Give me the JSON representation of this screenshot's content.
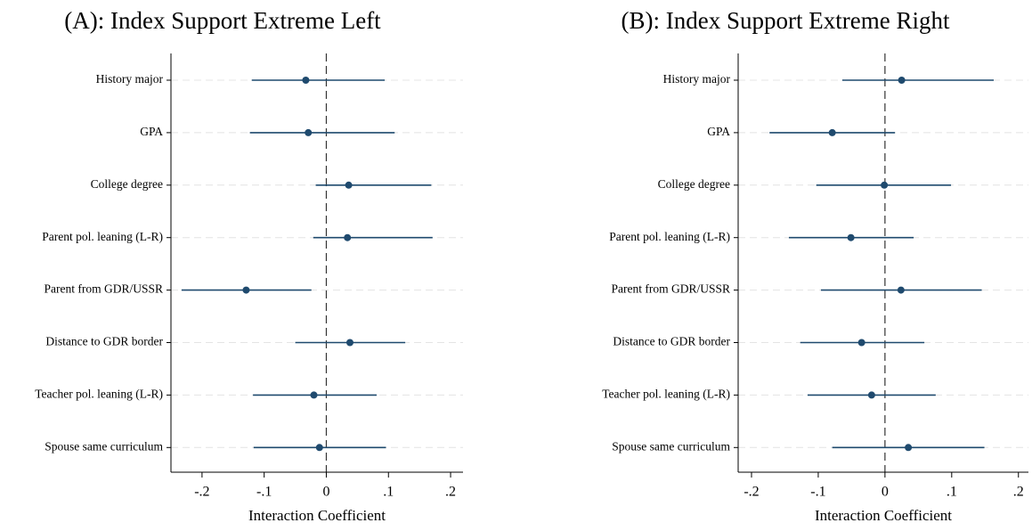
{
  "chart_data": [
    {
      "type": "errorbar",
      "title": "(A): Index Support Extreme Left",
      "x_label": "Interaction Coefficient",
      "categories": [
        "History major",
        "GPA",
        "College degree",
        "Parent pol. leaning (L-R)",
        "Parent from GDR/USSR",
        "Distance to GDR border",
        "Teacher pol. leaning (L-R)",
        "Spouse same curriculum"
      ],
      "series": [
        {
          "color": "#1f4a6e",
          "values": [
            -0.033,
            -0.029,
            0.036,
            0.034,
            -0.129,
            0.038,
            -0.02,
            -0.011
          ],
          "lower": [
            -0.12,
            -0.123,
            -0.017,
            -0.021,
            -0.233,
            -0.05,
            -0.118,
            -0.117
          ],
          "upper": [
            0.094,
            0.11,
            0.169,
            0.171,
            -0.024,
            0.127,
            0.081,
            0.096
          ]
        }
      ],
      "xlim": [
        -0.25,
        0.22
      ],
      "xticks": [
        {
          "value": -0.2,
          "label": "-.2"
        },
        {
          "value": -0.1,
          "label": "-.1"
        },
        0,
        {
          "value": 0.1,
          "label": ".1"
        },
        {
          "value": 0.2,
          "label": ".2"
        }
      ],
      "refline": 0,
      "grid": true
    },
    {
      "type": "errorbar",
      "title": "(B): Index Support Extreme Right",
      "x_label": "Interaction Coefficient",
      "categories": [
        "History major",
        "GPA",
        "College degree",
        "Parent pol. leaning (L-R)",
        "Parent from GDR/USSR",
        "Distance to GDR border",
        "Teacher pol. leaning (L-R)",
        "Spouse same curriculum"
      ],
      "series": [
        {
          "color": "#1f4a6e",
          "values": [
            0.025,
            -0.079,
            -0.001,
            -0.051,
            0.024,
            -0.035,
            -0.02,
            0.035
          ],
          "lower": [
            -0.064,
            -0.173,
            -0.103,
            -0.144,
            -0.096,
            -0.127,
            -0.116,
            -0.079
          ],
          "upper": [
            0.163,
            0.015,
            0.099,
            0.043,
            0.145,
            0.059,
            0.076,
            0.149
          ]
        }
      ],
      "xlim": [
        -0.22,
        0.215
      ],
      "xticks": [
        {
          "value": -0.2,
          "label": "-.2"
        },
        {
          "value": -0.1,
          "label": "-.1"
        },
        0,
        {
          "value": 0.1,
          "label": ".1"
        },
        {
          "value": 0.2,
          "label": ".2"
        }
      ],
      "refline": 0,
      "grid": true
    }
  ]
}
